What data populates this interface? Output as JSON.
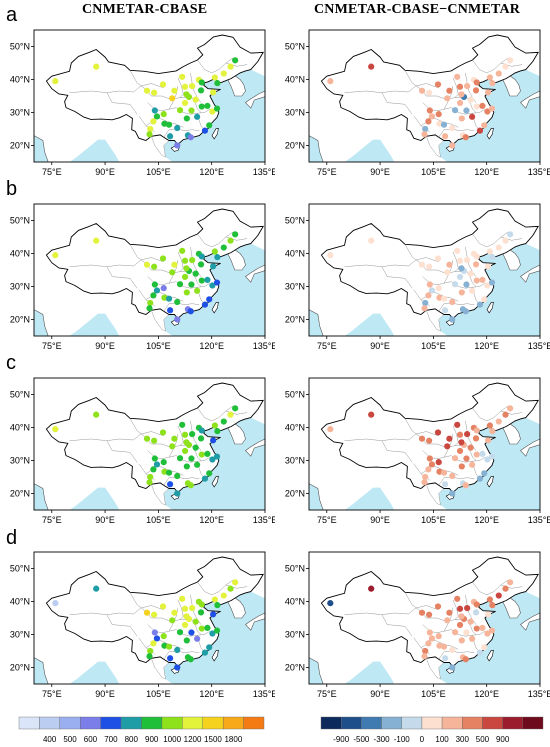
{
  "left_title": "CNMETAR-CBASE",
  "right_title": "CNMETAR-CBASE−CNMETAR",
  "rows": [
    {
      "label": "a"
    },
    {
      "label": "b"
    },
    {
      "label": "c"
    },
    {
      "label": "d"
    }
  ],
  "axes": {
    "x_ticks": [
      "75°E",
      "90°E",
      "105°E",
      "120°E",
      "135°E"
    ],
    "y_ticks": [
      "50°N",
      "40°N",
      "30°N",
      "20°N"
    ],
    "lon_range": [
      70,
      135
    ],
    "lat_range": [
      15,
      55
    ]
  },
  "colors": {
    "ocean": "#bfe8f5",
    "land": "#ffffff",
    "border": "#000000",
    "province": "#8a8a8a"
  },
  "colorbar_left": {
    "colors": [
      "#dbe5f9",
      "#bccdf2",
      "#9aaff0",
      "#7b7de8",
      "#1f50e6",
      "#1e9da6",
      "#1fbf3a",
      "#8ee21c",
      "#e3f23b",
      "#f5d21e",
      "#f8a91a",
      "#f47a14"
    ],
    "labels": [
      "400",
      "500",
      "600",
      "700",
      "800",
      "900",
      "1000",
      "1200",
      "1500",
      "1800"
    ]
  },
  "colorbar_right": {
    "colors": [
      "#0c2a5b",
      "#1f4f8a",
      "#3f7ab0",
      "#86b1d2",
      "#c5dbeb",
      "#fde0d0",
      "#f6b59a",
      "#e58263",
      "#c9473f",
      "#9b1c2c",
      "#6d0a1c"
    ],
    "labels": [
      "-900",
      "-500",
      "-300",
      "-100",
      "0",
      "100",
      "300",
      "500",
      "900"
    ]
  }
}
